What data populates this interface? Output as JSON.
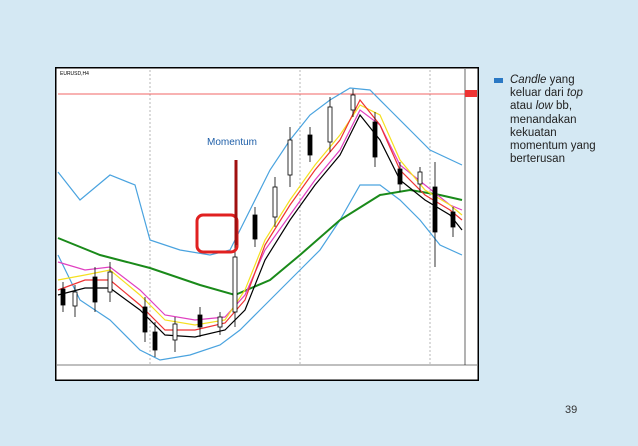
{
  "chart_header": "EURUSD,H4",
  "annotation": "Momentum",
  "bullet": {
    "lines": [
      [
        {
          "text": "Candle",
          "italic": true
        },
        {
          "text": " yang",
          "italic": false
        }
      ],
      [
        {
          "text": "keluar dari ",
          "italic": false
        },
        {
          "text": "top",
          "italic": true
        }
      ],
      [
        {
          "text": "atau ",
          "italic": false
        },
        {
          "text": "low",
          "italic": true
        },
        {
          "text": " bb,",
          "italic": false
        }
      ],
      [
        {
          "text": "menandakan",
          "italic": false
        }
      ],
      [
        {
          "text": "kekuatan",
          "italic": false
        }
      ],
      [
        {
          "text": "momentum yang",
          "italic": false
        }
      ],
      [
        {
          "text": "berterusan",
          "italic": false
        }
      ]
    ]
  },
  "page_number": "39"
}
